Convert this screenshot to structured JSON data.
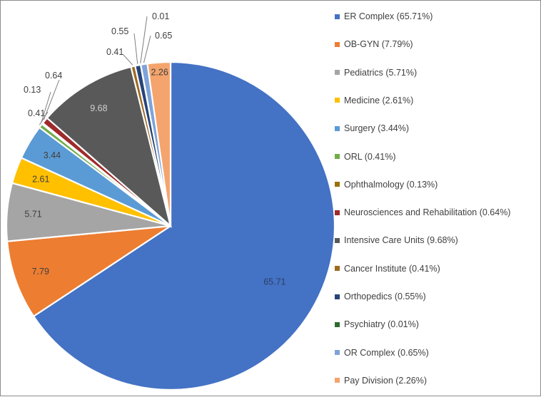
{
  "chart_data": {
    "type": "pie",
    "title": "",
    "legend_position": "right",
    "slices": [
      {
        "label": "ER Complex",
        "value": 65.71,
        "legend": "ER Complex (65.71%)",
        "value_label": "65.71",
        "color": "#4472C4"
      },
      {
        "label": "OB-GYN",
        "value": 7.79,
        "legend": "OB-GYN (7.79%)",
        "value_label": "7.79",
        "color": "#ED7D31"
      },
      {
        "label": "Pediatrics",
        "value": 5.71,
        "legend": "Pediatrics (5.71%)",
        "value_label": "5.71",
        "color": "#A5A5A5"
      },
      {
        "label": "Medicine",
        "value": 2.61,
        "legend": "Medicine (2.61%)",
        "value_label": "2.61",
        "color": "#FFC000"
      },
      {
        "label": "Surgery",
        "value": 3.44,
        "legend": "Surgery (3.44%)",
        "value_label": "3.44",
        "color": "#5B9BD5"
      },
      {
        "label": "ORL",
        "value": 0.41,
        "legend": "ORL (0.41%)",
        "value_label": "0.41",
        "color": "#70AD47"
      },
      {
        "label": "Ophthalmology",
        "value": 0.13,
        "legend": "Ophthalmology (0.13%)",
        "value_label": "0.13",
        "color": "#997300"
      },
      {
        "label": "Neurosciences and Rehabilitation",
        "value": 0.64,
        "legend": "Neurosciences and Rehabilitation (0.64%)",
        "value_label": "0.64",
        "color": "#9E2A2B"
      },
      {
        "label": "Intensive Care Units",
        "value": 9.68,
        "legend": "Intensive Care Units (9.68%)",
        "value_label": "9.68",
        "color": "#595959"
      },
      {
        "label": "Cancer Institute",
        "value": 0.41,
        "legend": "Cancer Institute (0.41%)",
        "value_label": "0.41",
        "color": "#9E6A1E"
      },
      {
        "label": "Orthopedics",
        "value": 0.55,
        "legend": "Orthopedics (0.55%)",
        "value_label": "0.55",
        "color": "#264478"
      },
      {
        "label": "Psychiatry",
        "value": 0.01,
        "legend": "Psychiatry (0.01%)",
        "value_label": "0.01",
        "color": "#2E6B30"
      },
      {
        "label": "OR Complex",
        "value": 0.65,
        "legend": "OR Complex (0.65%)",
        "value_label": "0.65",
        "color": "#7FA3D9"
      },
      {
        "label": "Pay Division",
        "value": 2.26,
        "legend": "Pay Division (2.26%)",
        "value_label": "2.26",
        "color": "#F4A46C"
      }
    ]
  }
}
